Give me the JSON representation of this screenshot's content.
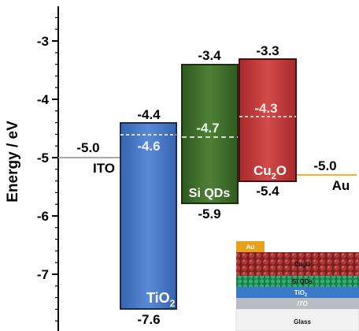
{
  "axis": {
    "label": "Energy / eV",
    "ticks": [
      "-3",
      "-4",
      "-5",
      "-6",
      "-7"
    ]
  },
  "materials": {
    "ito": {
      "name": "ITO",
      "level": "-5.0",
      "color": "#a8a8a8"
    },
    "tio2": {
      "name_main": "TiO",
      "name_sub": "2",
      "cb": "-4.4",
      "fermi": "-4.6",
      "vb": "-7.6",
      "color": "#4a78c6"
    },
    "siqd": {
      "name": "Si QDs",
      "cb": "-3.4",
      "fermi": "-4.7",
      "vb": "-5.9",
      "color": "#3d6a2a"
    },
    "cu2o": {
      "name_main": "Cu",
      "name_sub": "2",
      "name_end": "O",
      "cb": "-3.3",
      "fermi": "-4.3",
      "vb": "-5.4",
      "color": "#c0393b"
    },
    "au": {
      "name": "Au",
      "level": "-5.0",
      "color": "#f0b030"
    }
  },
  "inset": {
    "au": "Au",
    "cu2o_main": "Cu",
    "cu2o_sub": "2",
    "cu2o_end": "O",
    "siqd": "Si QDs",
    "tio2_main": "TiO",
    "tio2_sub": "2",
    "ito": "ITO",
    "glass": "Glass"
  }
}
